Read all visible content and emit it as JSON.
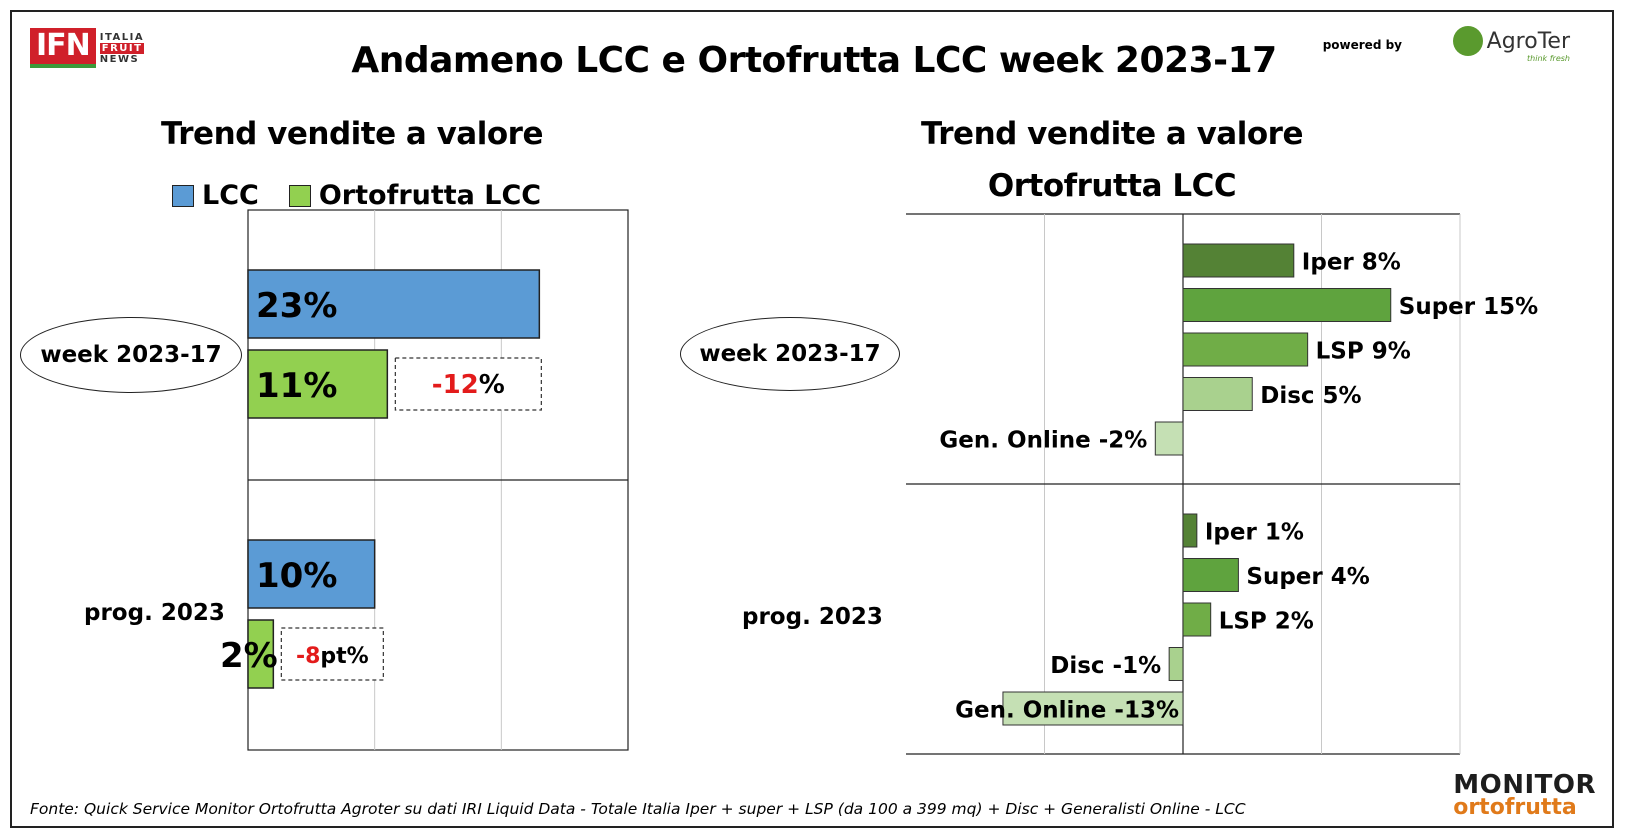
{
  "header": {
    "title": "Andameno LCC e Ortofrutta LCC week 2023-17",
    "logo_left_mark": "IFN",
    "logo_left_lines": [
      "ITALIA",
      "FRUIT",
      "NEWS"
    ],
    "powered_by": "powered by",
    "logo_right_name": "AgroTer",
    "logo_right_tagline": "think fresh"
  },
  "left_panel": {
    "subtitle": "Trend vendite a valore",
    "legend": [
      {
        "label": "LCC",
        "color": "#5b9bd5"
      },
      {
        "label": "Ortofrutta LCC",
        "color": "#92d050"
      }
    ]
  },
  "right_panel": {
    "subtitle_line1": "Trend vendite a valore",
    "subtitle_line2": "Ortofrutta LCC"
  },
  "chart_data": [
    {
      "type": "bar",
      "orientation": "horizontal",
      "title": "Trend vendite a valore",
      "categories": [
        "week 2023-17",
        "prog. 2023"
      ],
      "series": [
        {
          "name": "LCC",
          "color": "#5b9bd5",
          "values": [
            23,
            10
          ],
          "labels": [
            "23%",
            "10%"
          ]
        },
        {
          "name": "Ortofrutta LCC",
          "color": "#92d050",
          "values": [
            11,
            2
          ],
          "labels": [
            "11%",
            "2%"
          ]
        }
      ],
      "xlim": [
        0,
        30
      ],
      "grid": true,
      "legend": "top",
      "annotations": [
        {
          "category": "week 2023-17",
          "value": "-12",
          "suffix": "%"
        },
        {
          "category": "prog. 2023",
          "value": "-8",
          "suffix": "pt%"
        }
      ]
    },
    {
      "type": "bar",
      "orientation": "horizontal",
      "title": "Trend vendite a valore Ortofrutta LCC",
      "categories": [
        "week 2023-17",
        "prog. 2023"
      ],
      "groups": [
        {
          "category": "week 2023-17",
          "bars": [
            {
              "label": "Iper 8%",
              "value": 8,
              "color": "#548235"
            },
            {
              "label": "Super 15%",
              "value": 15,
              "color": "#5fa33e"
            },
            {
              "label": "LSP 9%",
              "value": 9,
              "color": "#70ad47"
            },
            {
              "label": "Disc 5%",
              "value": 5,
              "color": "#a9d18e"
            },
            {
              "label": "Gen. Online -2%",
              "value": -2,
              "color": "#c5e0b4"
            }
          ]
        },
        {
          "category": "prog. 2023",
          "bars": [
            {
              "label": "Iper 1%",
              "value": 1,
              "color": "#548235"
            },
            {
              "label": "Super 4%",
              "value": 4,
              "color": "#5fa33e"
            },
            {
              "label": "LSP 2%",
              "value": 2,
              "color": "#70ad47"
            },
            {
              "label": "Disc -1%",
              "value": -1,
              "color": "#a9d18e"
            },
            {
              "label": "Gen. Online -13%",
              "value": -13,
              "color": "#c5e0b4"
            }
          ]
        }
      ],
      "xlim": [
        -20,
        20
      ],
      "grid": true
    }
  ],
  "footer": {
    "source": "Fonte: Quick Service Monitor Ortofrutta Agroter su dati IRI Liquid Data - Totale Italia Iper + super + LSP (da 100 a 399 mq) + Disc + Generalisti Online - LCC",
    "logo_line1": "MONITOR",
    "logo_line2": "ortofrutta"
  }
}
